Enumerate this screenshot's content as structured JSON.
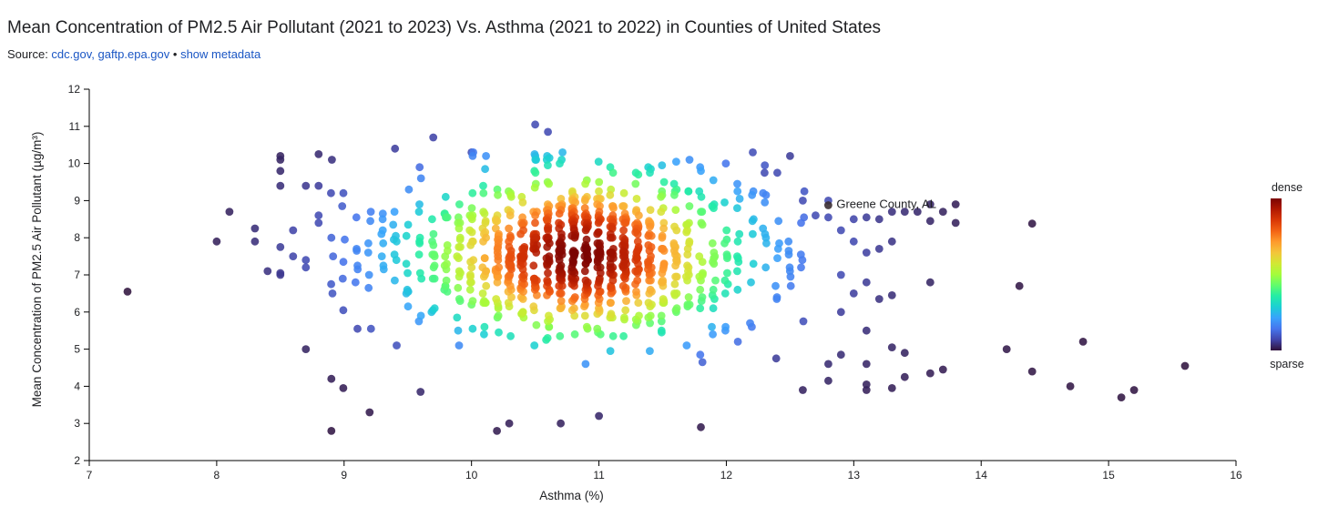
{
  "title": "Mean Concentration of PM2.5 Air Pollutant (2021 to 2023) Vs. Asthma (2021 to 2022) in Counties of United States",
  "source": {
    "prefix": "Source: ",
    "links": "cdc.gov, gaftp.epa.gov",
    "separator": " • ",
    "metadata_link": "show metadata"
  },
  "chart_data": {
    "type": "scatter",
    "xlabel": "Asthma (%)",
    "ylabel": "Mean Concentration of PM2.5 Air Pollutant (µg/m³)",
    "xlim": [
      7,
      16
    ],
    "ylim": [
      2,
      12
    ],
    "xticks": [
      "7",
      "8",
      "9",
      "10",
      "11",
      "12",
      "13",
      "14",
      "15",
      "16"
    ],
    "yticks": [
      "2",
      "3",
      "4",
      "5",
      "6",
      "7",
      "8",
      "9",
      "10",
      "11",
      "12"
    ],
    "color_encoding": "point density",
    "legend": {
      "high": "dense",
      "low": "sparse",
      "position": "right"
    },
    "colorscale": [
      "#30123b",
      "#4145ab",
      "#4675ed",
      "#39a2fc",
      "#1bcfd4",
      "#24eca6",
      "#61fc6c",
      "#a4fc3b",
      "#d1e834",
      "#f3c63a",
      "#fe9b2d",
      "#f36315",
      "#d93806",
      "#b11901",
      "#7a0402"
    ],
    "highlight": {
      "label": "Greene County, AL",
      "x": 12.8,
      "y": 8.9
    },
    "points": [
      [
        7.3,
        6.55
      ],
      [
        8.0,
        7.9
      ],
      [
        8.1,
        8.7
      ],
      [
        8.3,
        7.9
      ],
      [
        8.3,
        8.25
      ],
      [
        8.4,
        7.1
      ],
      [
        8.5,
        10.2
      ],
      [
        8.5,
        10.1
      ],
      [
        8.5,
        9.8
      ],
      [
        8.5,
        9.4
      ],
      [
        8.5,
        7.75
      ],
      [
        8.5,
        7.05
      ],
      [
        8.5,
        7.0
      ],
      [
        8.6,
        7.5
      ],
      [
        8.6,
        8.2
      ],
      [
        8.7,
        9.4
      ],
      [
        8.7,
        7.4
      ],
      [
        8.7,
        7.2
      ],
      [
        8.7,
        5.0
      ],
      [
        8.8,
        10.25
      ],
      [
        8.8,
        9.4
      ],
      [
        8.8,
        8.6
      ],
      [
        8.8,
        8.4
      ],
      [
        8.9,
        2.8
      ],
      [
        8.9,
        4.2
      ],
      [
        12.3,
        9.75
      ],
      [
        12.4,
        9.75
      ],
      [
        12.5,
        10.2
      ],
      [
        12.6,
        9.0
      ],
      [
        12.7,
        8.6
      ],
      [
        12.8,
        9.0
      ],
      [
        12.8,
        8.55
      ],
      [
        12.9,
        8.2
      ],
      [
        12.9,
        7.0
      ],
      [
        13.0,
        8.5
      ],
      [
        13.0,
        7.9
      ],
      [
        13.0,
        6.5
      ],
      [
        13.1,
        8.55
      ],
      [
        13.1,
        7.6
      ],
      [
        13.1,
        6.8
      ],
      [
        13.2,
        8.5
      ],
      [
        13.2,
        7.7
      ],
      [
        13.2,
        6.35
      ],
      [
        13.3,
        8.7
      ],
      [
        13.3,
        7.9
      ],
      [
        13.3,
        6.45
      ],
      [
        13.4,
        8.7
      ],
      [
        13.5,
        8.7
      ],
      [
        13.6,
        8.45
      ],
      [
        13.6,
        8.9
      ],
      [
        13.6,
        6.8
      ],
      [
        13.7,
        8.7
      ],
      [
        13.8,
        8.9
      ],
      [
        13.8,
        8.4
      ],
      [
        14.4,
        8.38
      ],
      [
        14.3,
        6.7
      ],
      [
        14.2,
        5.0
      ],
      [
        14.4,
        4.4
      ],
      [
        14.7,
        4.0
      ],
      [
        14.8,
        5.2
      ],
      [
        15.1,
        3.7
      ],
      [
        15.2,
        3.9
      ],
      [
        15.6,
        4.55
      ],
      [
        12.6,
        3.9
      ],
      [
        12.8,
        4.15
      ],
      [
        12.8,
        4.6
      ],
      [
        12.9,
        4.85
      ],
      [
        12.9,
        6.0
      ],
      [
        13.1,
        5.5
      ],
      [
        13.1,
        3.9
      ],
      [
        13.1,
        4.05
      ],
      [
        13.1,
        4.6
      ],
      [
        13.3,
        3.95
      ],
      [
        13.3,
        5.05
      ],
      [
        13.4,
        4.9
      ],
      [
        13.4,
        4.25
      ],
      [
        13.6,
        4.35
      ],
      [
        13.7,
        4.45
      ],
      [
        10.5,
        11.05
      ],
      [
        10.6,
        10.85
      ],
      [
        9.7,
        10.7
      ],
      [
        9.4,
        10.4
      ],
      [
        10.0,
        10.3
      ],
      [
        11.8,
        2.9
      ],
      [
        10.2,
        2.8
      ],
      [
        10.7,
        3.0
      ],
      [
        11.0,
        3.2
      ],
      [
        9.2,
        3.3
      ],
      [
        9.6,
        3.85
      ]
    ]
  }
}
